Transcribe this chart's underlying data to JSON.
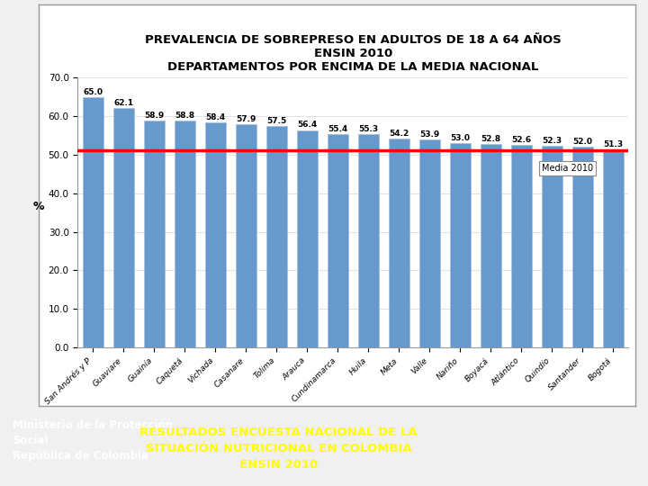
{
  "title_line1": "PREVALENCIA DE SOBREPRESO EN ADULTOS DE 18 A 64 AÑOS",
  "title_line2": "ENSIN 2010",
  "title_line3": "DEPARTAMENTOS POR ENCIMA DE LA MEDIA NACIONAL",
  "categories": [
    "San Andrés y P",
    "Guaviare",
    "Guainía",
    "Caquetá",
    "Vichada",
    "Casanare",
    "Tolima",
    "Arauca",
    "Cundinamarca",
    "Huila",
    "Meta",
    "Valle",
    "Nariño",
    "Boyacá",
    "Atlántico",
    "Quindío",
    "Santander",
    "Bogotá"
  ],
  "values": [
    65.0,
    62.1,
    58.9,
    58.8,
    58.4,
    57.9,
    57.5,
    56.4,
    55.4,
    55.3,
    54.2,
    53.9,
    53.0,
    52.8,
    52.6,
    52.3,
    52.0,
    51.3
  ],
  "bar_color": "#6699CC",
  "media_value": 51.1,
  "media_label": "Media 2010",
  "ylabel": "%",
  "ylim": [
    0,
    70
  ],
  "yticks": [
    0.0,
    10.0,
    20.0,
    30.0,
    40.0,
    50.0,
    60.0,
    70.0
  ],
  "title_fontsize": 9.5,
  "bar_label_fontsize": 6.5,
  "tick_fontsize": 7.5,
  "xtick_fontsize": 6.5,
  "background_color": "#F0F0F0",
  "chart_bg": "#FFFFFF",
  "media_line_color": "#FF0000",
  "footer_bg": "#4472C4",
  "footer_text1": "Ministerio de la Protección\nSocial\nRepública de Colombia",
  "footer_text2": "RESULTADOS ENCUESTA NACIONAL DE LA\nSITUACIÓN NUTRICIONAL EN COLOMBIA\nENSIN 2010",
  "footer_text_color1": "#FFFFFF",
  "footer_text_color2": "#FFFF00"
}
